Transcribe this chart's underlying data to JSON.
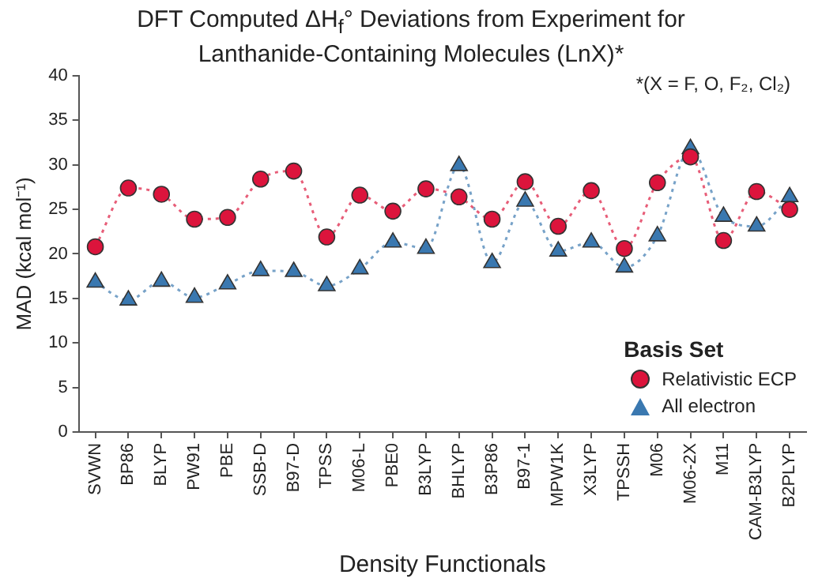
{
  "chart_data": {
    "type": "line",
    "title": "DFT Computed ΔH$_{f}$° Deviations from Experiment for Lanthanide-Containing Molecules (LnX)*",
    "annotations": [
      "*(X = F, O, F₂, Cl₂)"
    ],
    "xlabel": "Density Functionals",
    "ylabel": "MAD (kcal mol⁻¹)",
    "legend_title": "Basis Set",
    "legend": "bottom right",
    "grid": false,
    "line_style": "dotted",
    "categories": [
      "SVWN",
      "BP86",
      "BLYP",
      "PW91",
      "PBE",
      "SSB-D",
      "B97-D",
      "TPSS",
      "M06-L",
      "PBE0",
      "B3LYP",
      "BHLYP",
      "B3P86",
      "B97-1",
      "MPW1K",
      "X3LYP",
      "TPSSH",
      "M06",
      "M06-2X",
      "M11",
      "CAM-B3LYP",
      "B2PLYP"
    ],
    "ylim": [
      0,
      40
    ],
    "yticks": [
      0,
      5,
      10,
      15,
      20,
      25,
      30,
      35,
      40
    ],
    "series": [
      {
        "name": "Relativistic ECP",
        "color": "#dc143c",
        "marker": "circle",
        "values": [
          20.8,
          27.4,
          26.7,
          23.9,
          24.1,
          28.4,
          29.3,
          21.9,
          26.6,
          24.8,
          27.3,
          26.4,
          23.9,
          28.1,
          23.1,
          27.1,
          20.6,
          28.0,
          30.9,
          21.5,
          27.0,
          25.0
        ]
      },
      {
        "name": "All electron",
        "color": "#3a78b0",
        "marker": "triangle",
        "values": [
          16.8,
          14.8,
          16.9,
          15.1,
          16.6,
          18.1,
          18.0,
          16.4,
          18.3,
          21.3,
          20.6,
          29.9,
          19.0,
          25.9,
          20.3,
          21.3,
          18.5,
          22.0,
          31.8,
          24.2,
          23.1,
          26.4
        ]
      }
    ]
  }
}
